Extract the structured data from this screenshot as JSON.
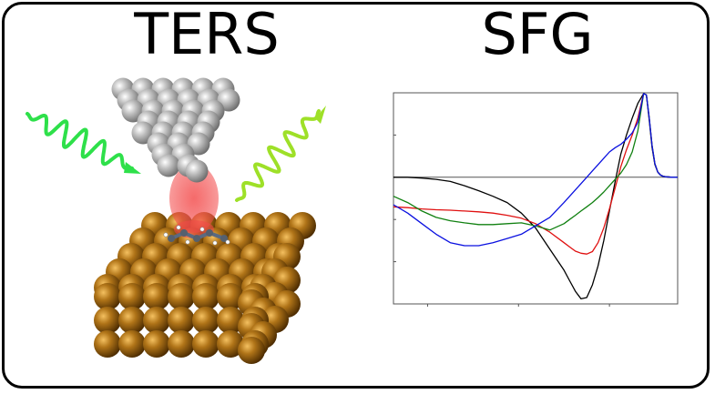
{
  "panels": {
    "left": {
      "title": "TERS"
    },
    "right": {
      "title": "SFG"
    }
  },
  "colors": {
    "tip_metal": "#a8a8a8",
    "substrate_metal": "#8a5a10",
    "field_glow": "#f24a4a",
    "incident_wave": "#2ee04a",
    "scattered_wave": "#9ee028",
    "molecule": "#5a6a80"
  },
  "chart_data": {
    "type": "line",
    "title": "",
    "xlabel": "",
    "ylabel": "",
    "xlim": [
      0,
      100
    ],
    "ylim": [
      -3,
      2
    ],
    "zero_line": 0,
    "x": [
      0,
      5,
      10,
      15,
      20,
      25,
      30,
      35,
      40,
      45,
      50,
      55,
      60,
      62,
      64,
      66,
      68,
      70,
      72,
      74,
      76,
      78,
      80,
      82,
      84,
      86,
      88,
      89,
      90,
      91,
      92,
      93,
      94,
      95,
      96,
      98,
      100
    ],
    "series": [
      {
        "name": "black",
        "color": "#000000",
        "values": [
          0.0,
          0.0,
          -0.02,
          -0.05,
          -0.1,
          -0.2,
          -0.32,
          -0.45,
          -0.6,
          -0.85,
          -1.2,
          -1.7,
          -2.2,
          -2.45,
          -2.7,
          -2.88,
          -2.85,
          -2.55,
          -2.1,
          -1.5,
          -0.8,
          -0.1,
          0.55,
          1.0,
          1.4,
          1.75,
          1.98,
          1.95,
          1.35,
          0.7,
          0.3,
          0.12,
          0.05,
          0.02,
          0.01,
          0.0,
          0.0
        ]
      },
      {
        "name": "red",
        "color": "#e01010",
        "values": [
          -0.7,
          -0.72,
          -0.75,
          -0.77,
          -0.78,
          -0.8,
          -0.82,
          -0.85,
          -0.9,
          -0.97,
          -1.1,
          -1.3,
          -1.55,
          -1.65,
          -1.75,
          -1.8,
          -1.82,
          -1.76,
          -1.55,
          -1.2,
          -0.75,
          -0.25,
          0.25,
          0.65,
          1.0,
          1.4,
          1.98,
          1.95,
          1.4,
          0.75,
          0.32,
          0.12,
          0.05,
          0.02,
          0.01,
          0.0,
          0.0
        ]
      },
      {
        "name": "green",
        "color": "#108010",
        "values": [
          -0.45,
          -0.6,
          -0.8,
          -0.95,
          -1.03,
          -1.08,
          -1.12,
          -1.12,
          -1.1,
          -1.08,
          -1.15,
          -1.25,
          -1.1,
          -1.0,
          -0.9,
          -0.8,
          -0.7,
          -0.6,
          -0.48,
          -0.35,
          -0.2,
          -0.05,
          0.1,
          0.3,
          0.6,
          1.1,
          1.98,
          1.95,
          1.4,
          0.75,
          0.32,
          0.12,
          0.05,
          0.02,
          0.01,
          0.0,
          0.0
        ]
      },
      {
        "name": "blue",
        "color": "#0a10e0",
        "values": [
          -0.65,
          -0.85,
          -1.1,
          -1.35,
          -1.55,
          -1.62,
          -1.62,
          -1.55,
          -1.45,
          -1.35,
          -1.15,
          -0.95,
          -0.6,
          -0.45,
          -0.3,
          -0.15,
          0.0,
          0.15,
          0.3,
          0.45,
          0.6,
          0.7,
          0.78,
          0.9,
          1.05,
          1.3,
          1.98,
          1.95,
          1.4,
          0.75,
          0.32,
          0.12,
          0.05,
          0.02,
          0.01,
          0.0,
          0.0
        ]
      }
    ]
  }
}
